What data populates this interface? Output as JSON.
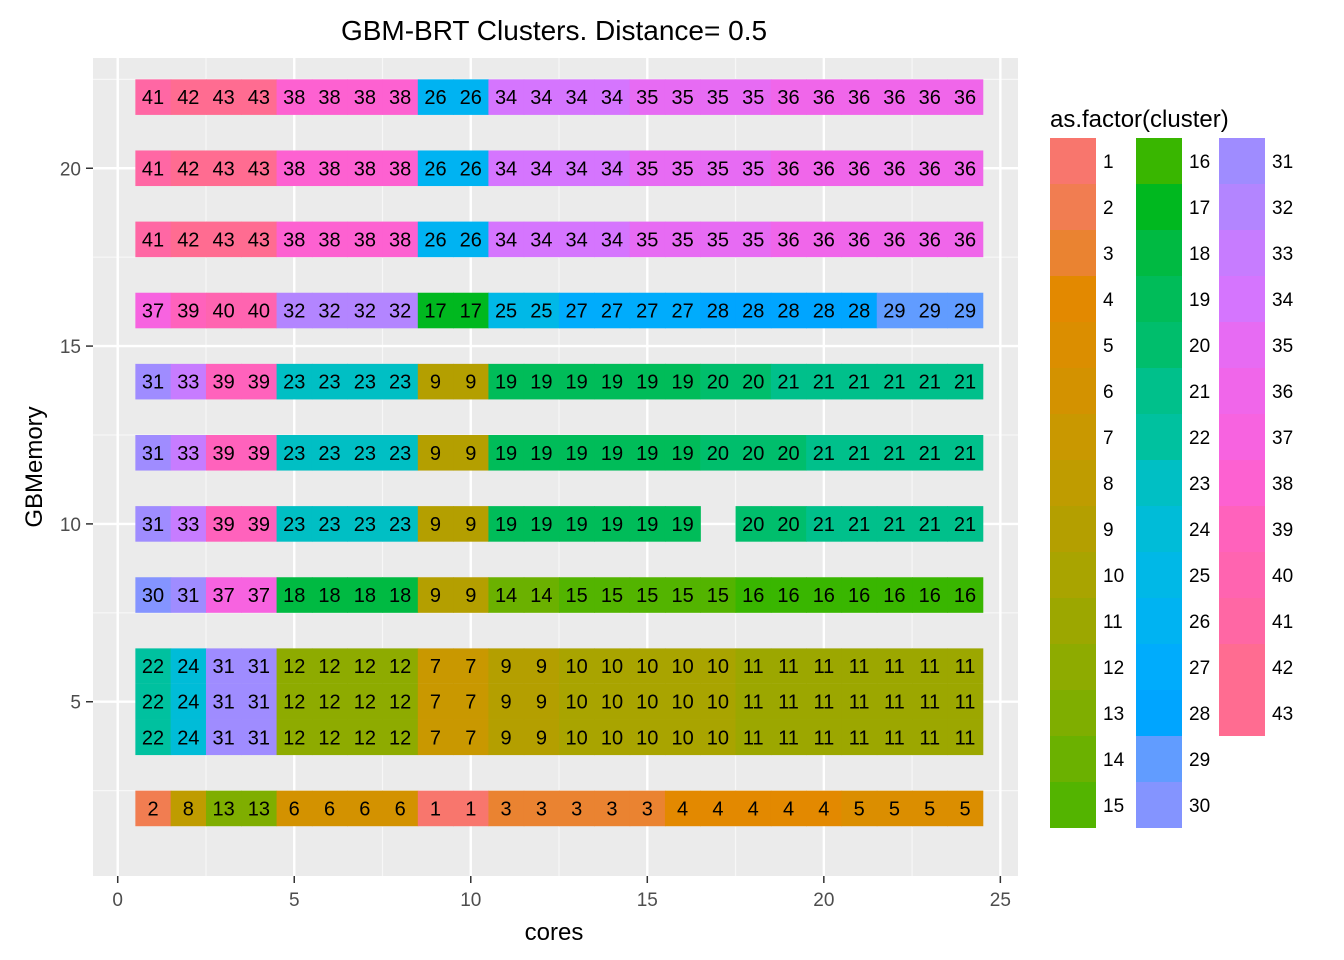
{
  "chart_data": {
    "type": "heatmap",
    "title": "GBM-BRT Clusters. Distance= 0.5",
    "xlabel": "cores",
    "ylabel": "GBMemory",
    "xlim": [
      -0.7,
      25.5
    ],
    "ylim": [
      0.1,
      23.1
    ],
    "x_ticks": [
      0,
      5,
      10,
      15,
      20,
      25
    ],
    "y_ticks": [
      5,
      10,
      15,
      20
    ],
    "x_tick_labels": [
      "0",
      "5",
      "10",
      "15",
      "20",
      "25"
    ],
    "y_tick_labels": [
      "5",
      "10",
      "15",
      "20"
    ],
    "grid": true,
    "legend": {
      "title": "as.factor(cluster)",
      "placement": "right",
      "labels": [
        "1",
        "2",
        "3",
        "4",
        "5",
        "6",
        "7",
        "8",
        "9",
        "10",
        "11",
        "12",
        "13",
        "14",
        "15",
        "16",
        "17",
        "18",
        "19",
        "20",
        "21",
        "22",
        "23",
        "24",
        "25",
        "26",
        "27",
        "28",
        "29",
        "30",
        "31",
        "32",
        "33",
        "34",
        "35",
        "36",
        "37",
        "38",
        "39",
        "40",
        "41",
        "42",
        "43"
      ]
    },
    "palette": [
      "#F8766D",
      "#F17D51",
      "#EA8331",
      "#E38900",
      "#DB8E00",
      "#D39200",
      "#C99800",
      "#BF9C00",
      "#B49F00",
      "#A9A400",
      "#9CA700",
      "#8EAB00",
      "#7FAE00",
      "#6BB100",
      "#53B400",
      "#39B600",
      "#00B81F",
      "#00BA42",
      "#00BC59",
      "#00BE6C",
      "#00C08B",
      "#00C19F",
      "#00BFC4",
      "#00BCD8",
      "#00B8E7",
      "#00B3F2",
      "#00ACFC",
      "#00A5FF",
      "#619CFF",
      "#8494FF",
      "#9F8CFF",
      "#B385FF",
      "#C77CFF",
      "#D575FE",
      "#E76BF3",
      "#F066EA",
      "#F763E0",
      "#FD61D1",
      "#FF62BC",
      "#FF64B0",
      "#FF67A4",
      "#FF6C91",
      "#FF6C91"
    ],
    "cells": [
      {
        "y": 2,
        "clusters": [
          2,
          8,
          13,
          13,
          6,
          6,
          6,
          6,
          1,
          1,
          3,
          3,
          3,
          3,
          3,
          4,
          4,
          4,
          4,
          4,
          5,
          5,
          5,
          5
        ]
      },
      {
        "y": 4,
        "clusters": [
          22,
          24,
          31,
          31,
          12,
          12,
          12,
          12,
          7,
          7,
          9,
          9,
          10,
          10,
          10,
          10,
          10,
          11,
          11,
          11,
          11,
          11,
          11,
          11
        ]
      },
      {
        "y": 5,
        "clusters": [
          22,
          24,
          31,
          31,
          12,
          12,
          12,
          12,
          7,
          7,
          9,
          9,
          10,
          10,
          10,
          10,
          10,
          11,
          11,
          11,
          11,
          11,
          11,
          11
        ]
      },
      {
        "y": 6,
        "clusters": [
          22,
          24,
          31,
          31,
          12,
          12,
          12,
          12,
          7,
          7,
          9,
          9,
          10,
          10,
          10,
          10,
          10,
          11,
          11,
          11,
          11,
          11,
          11,
          11
        ]
      },
      {
        "y": 8,
        "clusters": [
          30,
          31,
          37,
          37,
          18,
          18,
          18,
          18,
          9,
          9,
          14,
          14,
          15,
          15,
          15,
          15,
          15,
          16,
          16,
          16,
          16,
          16,
          16,
          16
        ]
      },
      {
        "y": 10,
        "clusters": [
          31,
          33,
          39,
          39,
          23,
          23,
          23,
          23,
          9,
          9,
          19,
          19,
          19,
          19,
          19,
          19,
          null,
          20,
          20,
          21,
          21,
          21,
          21,
          21
        ]
      },
      {
        "y": 12,
        "clusters": [
          31,
          33,
          39,
          39,
          23,
          23,
          23,
          23,
          9,
          9,
          19,
          19,
          19,
          19,
          19,
          19,
          20,
          20,
          20,
          21,
          21,
          21,
          21,
          21
        ]
      },
      {
        "y": 14,
        "clusters": [
          31,
          33,
          39,
          39,
          23,
          23,
          23,
          23,
          9,
          9,
          19,
          19,
          19,
          19,
          19,
          19,
          20,
          20,
          21,
          21,
          21,
          21,
          21,
          21
        ]
      },
      {
        "y": 16,
        "clusters": [
          37,
          39,
          40,
          40,
          32,
          32,
          32,
          32,
          17,
          17,
          25,
          25,
          27,
          27,
          27,
          27,
          28,
          28,
          28,
          28,
          28,
          29,
          29,
          29
        ]
      },
      {
        "y": 18,
        "clusters": [
          41,
          42,
          43,
          43,
          38,
          38,
          38,
          38,
          26,
          26,
          34,
          34,
          34,
          34,
          35,
          35,
          35,
          35,
          36,
          36,
          36,
          36,
          36,
          36
        ]
      },
      {
        "y": 20,
        "clusters": [
          41,
          42,
          43,
          43,
          38,
          38,
          38,
          38,
          26,
          26,
          34,
          34,
          34,
          34,
          35,
          35,
          35,
          35,
          36,
          36,
          36,
          36,
          36,
          36
        ]
      },
      {
        "y": 22,
        "clusters": [
          41,
          42,
          43,
          43,
          38,
          38,
          38,
          38,
          26,
          26,
          34,
          34,
          34,
          34,
          35,
          35,
          35,
          35,
          36,
          36,
          36,
          36,
          36,
          36
        ]
      }
    ]
  }
}
